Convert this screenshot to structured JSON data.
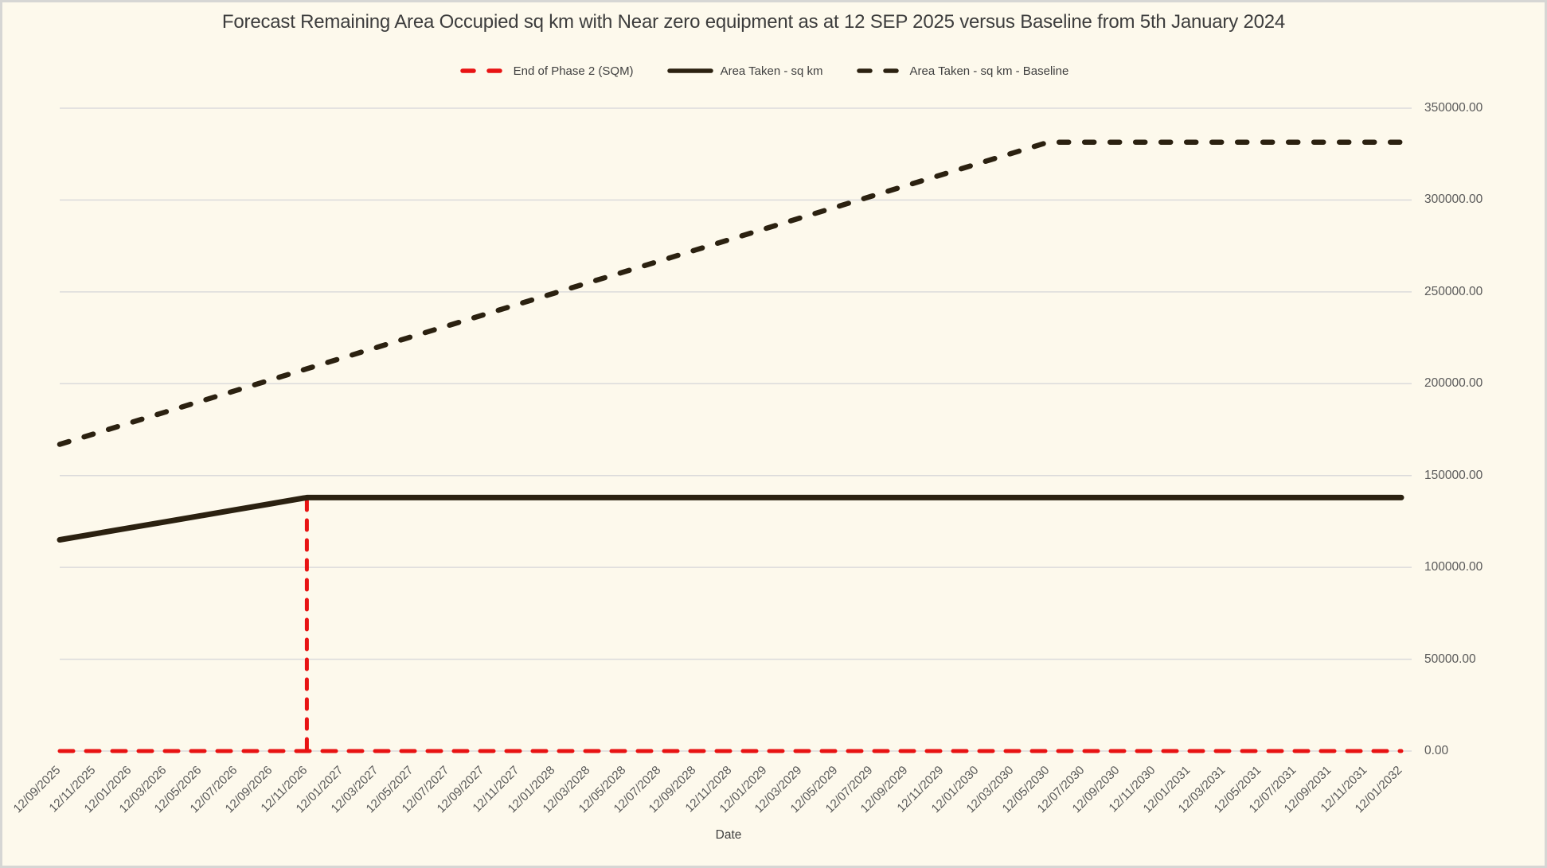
{
  "colors": {
    "background": "#fdf9ec",
    "frame_border": "#d6d6d4",
    "grid": "#dbdbdb",
    "axis_text": "#595959",
    "title_text": "#3d3d3d",
    "red": "#e81313",
    "dark": "#2b2110"
  },
  "chart_data": {
    "type": "line",
    "title": "Forecast Remaining Area Occupied sq km with Near zero equipment as at 12 SEP 2025 versus Baseline from 5th January 2024",
    "xlabel": "Date",
    "ylabel": "",
    "ylim": [
      0,
      350000
    ],
    "y_tick_step": 50000,
    "grid": true,
    "legend_position": "top-center",
    "y_tick_labels": [
      "350000.00",
      "300000.00",
      "250000.00",
      "200000.00",
      "150000.00",
      "100000.00",
      "50000.00",
      "0.00"
    ],
    "categories": [
      "12/09/2025",
      "12/11/2025",
      "12/01/2026",
      "12/03/2026",
      "12/05/2026",
      "12/07/2026",
      "12/09/2026",
      "12/11/2026",
      "12/01/2027",
      "12/03/2027",
      "12/05/2027",
      "12/07/2027",
      "12/09/2027",
      "12/11/2027",
      "12/01/2028",
      "12/03/2028",
      "12/05/2028",
      "12/07/2028",
      "12/09/2028",
      "12/11/2028",
      "12/01/2029",
      "12/03/2029",
      "12/05/2029",
      "12/07/2029",
      "12/09/2029",
      "12/11/2029",
      "12/01/2030",
      "12/03/2030",
      "12/05/2030",
      "12/07/2030",
      "12/09/2030",
      "12/11/2030",
      "12/01/2031",
      "12/03/2031",
      "12/05/2031",
      "12/07/2031",
      "12/09/2031",
      "12/11/2031",
      "12/01/2032"
    ],
    "series": [
      {
        "name": "End of Phase 2 (SQM)",
        "color": "#e81313",
        "dash": "dashed",
        "role": "event-marker",
        "values": [
          0,
          0,
          0,
          0,
          0,
          0,
          0,
          0,
          0,
          0,
          0,
          0,
          0,
          0,
          0,
          0,
          0,
          0,
          0,
          0,
          0,
          0,
          0,
          0,
          0,
          0,
          0,
          0,
          0,
          0,
          0,
          0,
          0,
          0,
          0,
          0,
          0,
          0,
          0
        ],
        "spike": {
          "category": "12/11/2026",
          "index": 7,
          "top": 138000
        }
      },
      {
        "name": "Area Taken - sq km",
        "color": "#2b2110",
        "dash": "solid",
        "values": [
          115000,
          118286,
          121571,
          124857,
          128143,
          131429,
          134714,
          138000,
          138000,
          138000,
          138000,
          138000,
          138000,
          138000,
          138000,
          138000,
          138000,
          138000,
          138000,
          138000,
          138000,
          138000,
          138000,
          138000,
          138000,
          138000,
          138000,
          138000,
          138000,
          138000,
          138000,
          138000,
          138000,
          138000,
          138000,
          138000,
          138000,
          138000,
          138000
        ]
      },
      {
        "name": "Area Taken - sq km - Baseline",
        "color": "#2b2110",
        "dash": "dashed",
        "values": [
          167000,
          172875,
          178750,
          184625,
          190500,
          196375,
          202250,
          208125,
          214000,
          219875,
          225750,
          231625,
          237500,
          243375,
          249250,
          255125,
          261000,
          266875,
          272750,
          278625,
          284500,
          290375,
          296250,
          302125,
          308000,
          313875,
          319750,
          325625,
          331500,
          331500,
          331500,
          331500,
          331500,
          331500,
          331500,
          331500,
          331500,
          331500,
          331500
        ]
      }
    ]
  }
}
